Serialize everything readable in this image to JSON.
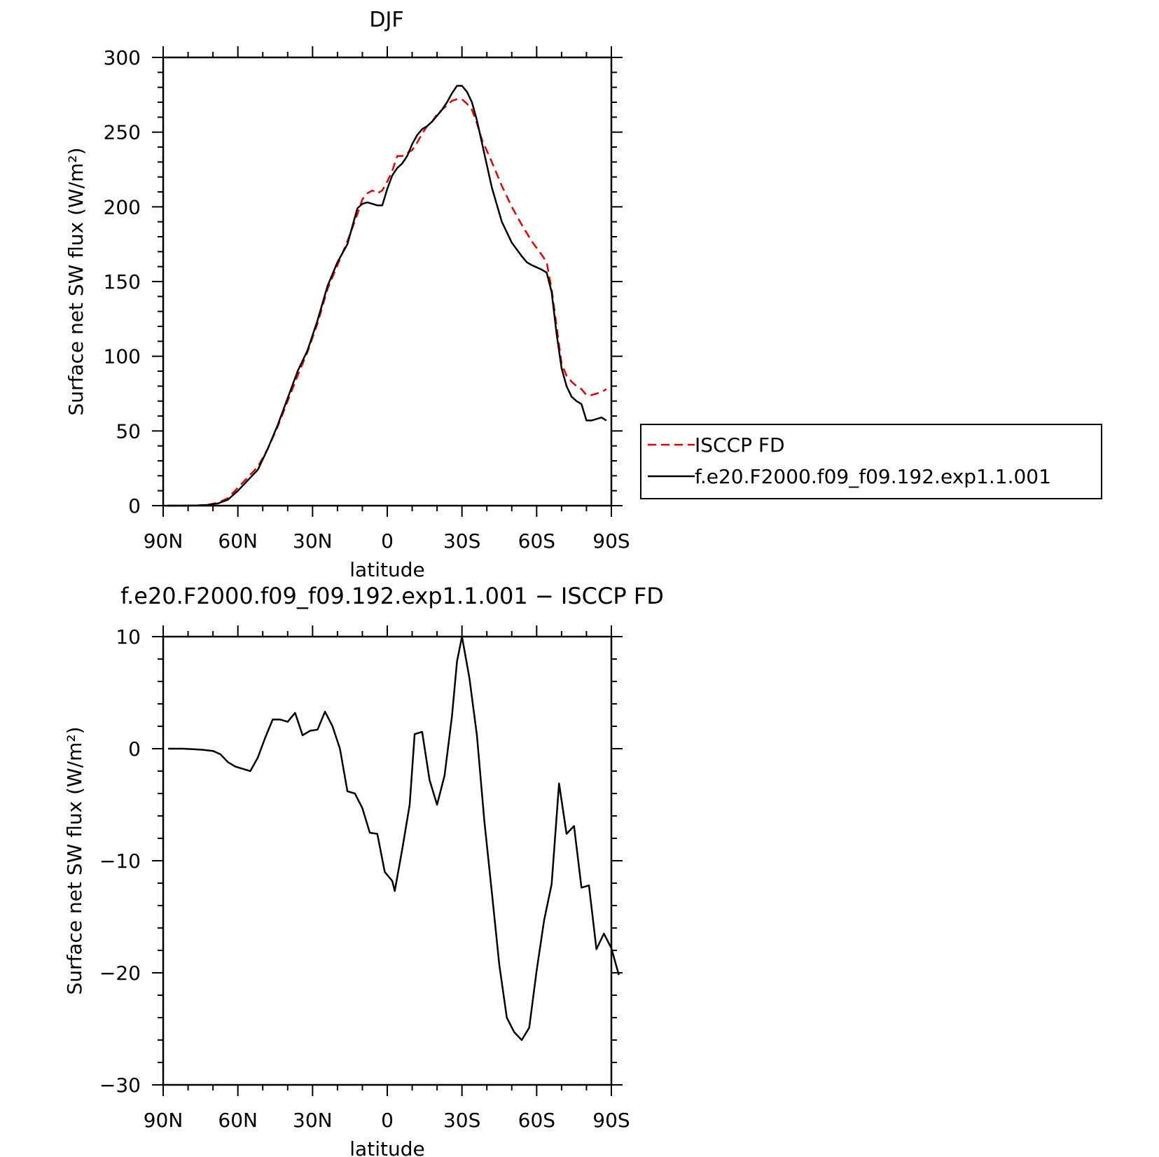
{
  "chart_data": [
    {
      "type": "line",
      "title": "DJF",
      "xlabel": "latitude",
      "ylabel": "Surface net SW flux (W/m²)",
      "ylim": [
        0,
        300
      ],
      "xlim": [
        -90,
        90
      ],
      "x_tick_values": [
        -90,
        -60,
        -30,
        0,
        30,
        60,
        90
      ],
      "x_tick_labels": [
        "90N",
        "60N",
        "30N",
        "0",
        "30S",
        "60S",
        "90S"
      ],
      "y_tick_values": [
        0,
        50,
        100,
        150,
        200,
        250,
        300
      ],
      "y_tick_labels": [
        "0",
        "50",
        "100",
        "150",
        "200",
        "250",
        "300"
      ],
      "legend_position": "right",
      "series": [
        {
          "name": "ISCCP FD",
          "color": "#e00000",
          "dash": "dashed",
          "points": [
            [
              -88,
              0
            ],
            [
              -82,
              0
            ],
            [
              -76,
              0.2
            ],
            [
              -72,
              0.6
            ],
            [
              -68,
              2
            ],
            [
              -64,
              5
            ],
            [
              -60,
              12
            ],
            [
              -56,
              19
            ],
            [
              -52,
              26
            ],
            [
              -48,
              38
            ],
            [
              -44,
              53
            ],
            [
              -40,
              70
            ],
            [
              -36,
              87
            ],
            [
              -32,
              103
            ],
            [
              -28,
              122
            ],
            [
              -24,
              145
            ],
            [
              -20,
              161
            ],
            [
              -16,
              177
            ],
            [
              -12,
              195
            ],
            [
              -10,
              205
            ],
            [
              -8,
              209
            ],
            [
              -6,
              211
            ],
            [
              -4,
              209
            ],
            [
              -2,
              211
            ],
            [
              0,
              217
            ],
            [
              2,
              224
            ],
            [
              4,
              234
            ],
            [
              6,
              234
            ],
            [
              8,
              236
            ],
            [
              10,
              238
            ],
            [
              12,
              243
            ],
            [
              14,
              249
            ],
            [
              16,
              254
            ],
            [
              18,
              257
            ],
            [
              20,
              262
            ],
            [
              22,
              265
            ],
            [
              24,
              268
            ],
            [
              26,
              271
            ],
            [
              28,
              272
            ],
            [
              30,
              272
            ],
            [
              32,
              269
            ],
            [
              34,
              265
            ],
            [
              36,
              256
            ],
            [
              38,
              245
            ],
            [
              42,
              230
            ],
            [
              46,
              214
            ],
            [
              50,
              200
            ],
            [
              54,
              188
            ],
            [
              58,
              177
            ],
            [
              62,
              168
            ],
            [
              64,
              163
            ],
            [
              66,
              145
            ],
            [
              68,
              120
            ],
            [
              70,
              95
            ],
            [
              72,
              87
            ],
            [
              74,
              83
            ],
            [
              76,
              80
            ],
            [
              78,
              78
            ],
            [
              80,
              74
            ],
            [
              82,
              74
            ],
            [
              84,
              75
            ],
            [
              86,
              76
            ],
            [
              88,
              78
            ]
          ]
        },
        {
          "name": "f.e20.F2000.f09_f09.192.exp1.1.001",
          "color": "#000000",
          "dash": "solid",
          "points": [
            [
              -88,
              0
            ],
            [
              -82,
              0
            ],
            [
              -76,
              0.2
            ],
            [
              -72,
              0.5
            ],
            [
              -68,
              1.5
            ],
            [
              -64,
              4
            ],
            [
              -60,
              10
            ],
            [
              -56,
              17
            ],
            [
              -52,
              24
            ],
            [
              -48,
              38
            ],
            [
              -44,
              54
            ],
            [
              -40,
              72
            ],
            [
              -36,
              90
            ],
            [
              -32,
              104
            ],
            [
              -28,
              124
            ],
            [
              -24,
              147
            ],
            [
              -20,
              163
            ],
            [
              -16,
              175
            ],
            [
              -12,
              199
            ],
            [
              -10,
              202
            ],
            [
              -8,
              203
            ],
            [
              -6,
              202
            ],
            [
              -4,
              201
            ],
            [
              -2,
              201
            ],
            [
              0,
              212
            ],
            [
              2,
              221
            ],
            [
              4,
              226
            ],
            [
              6,
              229
            ],
            [
              8,
              234
            ],
            [
              10,
              242
            ],
            [
              12,
              248
            ],
            [
              14,
              252
            ],
            [
              16,
              254
            ],
            [
              18,
              257
            ],
            [
              20,
              261
            ],
            [
              22,
              265
            ],
            [
              24,
              270
            ],
            [
              26,
              276
            ],
            [
              28,
              281
            ],
            [
              30,
              281
            ],
            [
              32,
              277
            ],
            [
              34,
              270
            ],
            [
              36,
              258
            ],
            [
              38,
              243
            ],
            [
              42,
              213
            ],
            [
              46,
              190
            ],
            [
              50,
              176
            ],
            [
              54,
              167
            ],
            [
              56,
              163
            ],
            [
              58,
              161
            ],
            [
              62,
              158
            ],
            [
              64,
              156
            ],
            [
              66,
              143
            ],
            [
              68,
              115
            ],
            [
              70,
              92
            ],
            [
              72,
              80
            ],
            [
              74,
              73
            ],
            [
              76,
              70
            ],
            [
              78,
              68
            ],
            [
              80,
              57
            ],
            [
              82,
              57
            ],
            [
              84,
              58
            ],
            [
              86,
              59
            ],
            [
              88,
              57
            ]
          ]
        }
      ]
    },
    {
      "type": "line",
      "title": "f.e20.F2000.f09_f09.192.exp1.1.001 − ISCCP FD",
      "xlabel": "latitude",
      "ylabel": "Surface net SW flux (W/m²)",
      "ylim": [
        -30,
        10
      ],
      "xlim": [
        -90,
        90
      ],
      "x_tick_values": [
        -90,
        -60,
        -30,
        0,
        30,
        60,
        90
      ],
      "x_tick_labels": [
        "90N",
        "60N",
        "30N",
        "0",
        "30S",
        "60S",
        "90S"
      ],
      "y_tick_values": [
        -30,
        -20,
        -10,
        0,
        10
      ],
      "y_tick_labels": [
        "−30",
        "−20",
        "−10",
        "0",
        "10"
      ],
      "series": [
        {
          "color": "#000000",
          "dash": "solid",
          "points": [
            [
              -88,
              0
            ],
            [
              -82,
              0
            ],
            [
              -78,
              -0.05
            ],
            [
              -74,
              -0.1
            ],
            [
              -70,
              -0.2
            ],
            [
              -67,
              -0.5
            ],
            [
              -64,
              -1.2
            ],
            [
              -61,
              -1.6
            ],
            [
              -58,
              -1.8
            ],
            [
              -55,
              -2.0
            ],
            [
              -52,
              -0.8
            ],
            [
              -49,
              1.0
            ],
            [
              -46,
              2.6
            ],
            [
              -43,
              2.6
            ],
            [
              -40,
              2.4
            ],
            [
              -37,
              3.2
            ],
            [
              -34,
              1.2
            ],
            [
              -31,
              1.6
            ],
            [
              -28,
              1.7
            ],
            [
              -25,
              3.3
            ],
            [
              -22,
              2.0
            ],
            [
              -19,
              0
            ],
            [
              -16,
              -3.8
            ],
            [
              -13,
              -4.0
            ],
            [
              -10,
              -5.3
            ],
            [
              -7,
              -7.5
            ],
            [
              -4,
              -7.6
            ],
            [
              -1,
              -11.0
            ],
            [
              2,
              -11.8
            ],
            [
              3,
              -12.7
            ],
            [
              6,
              -9.0
            ],
            [
              9,
              -5.0
            ],
            [
              11,
              1.3
            ],
            [
              14,
              1.5
            ],
            [
              17,
              -2.8
            ],
            [
              20,
              -5.0
            ],
            [
              23,
              -2.4
            ],
            [
              26,
              2.9
            ],
            [
              28,
              7.8
            ],
            [
              30,
              10
            ],
            [
              33,
              6.3
            ],
            [
              36,
              1.2
            ],
            [
              39,
              -6.5
            ],
            [
              42,
              -12.8
            ],
            [
              45,
              -19.3
            ],
            [
              48,
              -24.0
            ],
            [
              51,
              -25.3
            ],
            [
              54,
              -26.0
            ],
            [
              57,
              -24.9
            ],
            [
              60,
              -19.8
            ],
            [
              63,
              -15.3
            ],
            [
              66,
              -12.1
            ],
            [
              69,
              -3.1
            ],
            [
              72,
              -7.6
            ],
            [
              75,
              -6.9
            ],
            [
              78,
              -12.4
            ],
            [
              81,
              -12.2
            ],
            [
              84,
              -17.9
            ],
            [
              87,
              -16.5
            ],
            [
              90,
              -17.8
            ],
            [
              93,
              -20.2
            ]
          ]
        }
      ]
    }
  ]
}
